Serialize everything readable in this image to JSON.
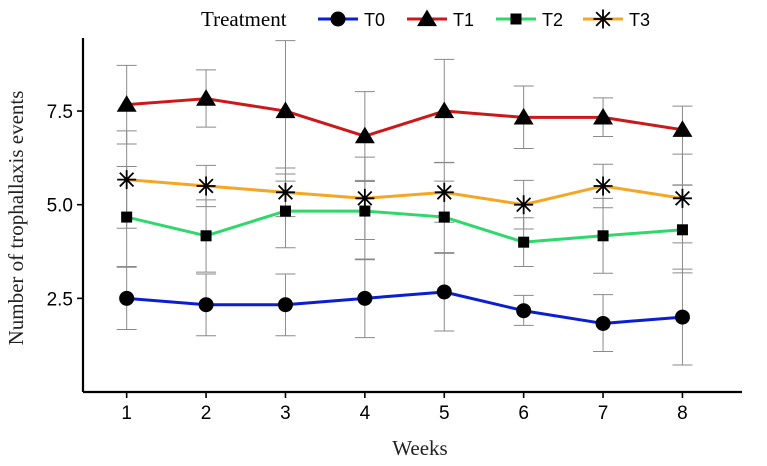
{
  "chart_data": {
    "type": "line",
    "title": "",
    "xlabel": "Weeks",
    "ylabel": "Number of trophallaxis events",
    "x": [
      1,
      2,
      3,
      4,
      5,
      6,
      7,
      8
    ],
    "x_ticks": [
      "1",
      "2",
      "3",
      "4",
      "5",
      "6",
      "7",
      "8"
    ],
    "y_ticks": [
      "2.5",
      "5.0",
      "7.5"
    ],
    "y_tick_values": [
      2.5,
      5.0,
      7.5
    ],
    "xlim": [
      0.45,
      8.75
    ],
    "ylim": [
      0.0,
      9.45
    ],
    "legend_title": "Treatment",
    "legend_position": "top",
    "grid": false,
    "series": [
      {
        "name": "T0",
        "color": "#0a1fd0",
        "marker": "circle",
        "values": [
          2.5,
          2.33,
          2.33,
          2.5,
          2.67,
          2.17,
          1.83,
          2.0
        ],
        "err_lower": [
          1.67,
          1.5,
          1.5,
          1.45,
          1.63,
          1.78,
          1.08,
          0.72
        ],
        "err_upper": [
          3.35,
          3.15,
          3.15,
          3.55,
          3.7,
          2.58,
          2.6,
          3.28
        ]
      },
      {
        "name": "T1",
        "color": "#cc1818",
        "marker": "triangle",
        "values": [
          7.67,
          7.83,
          7.5,
          6.83,
          7.5,
          7.33,
          7.33,
          7.0
        ],
        "err_lower": [
          6.62,
          7.07,
          5.63,
          5.65,
          6.12,
          6.5,
          6.82,
          5.53
        ],
        "err_upper": [
          8.72,
          8.6,
          9.38,
          8.02,
          8.88,
          8.17,
          7.85,
          7.63
        ]
      },
      {
        "name": "T2",
        "color": "#2ed86a",
        "marker": "square",
        "values": [
          4.67,
          4.17,
          4.83,
          4.83,
          4.67,
          4.0,
          4.17,
          4.33
        ],
        "err_lower": [
          3.33,
          3.2,
          3.85,
          3.53,
          3.72,
          3.35,
          3.17,
          3.18
        ],
        "err_upper": [
          6.02,
          5.13,
          5.82,
          5.62,
          5.63,
          4.65,
          5.17,
          5.52
        ]
      },
      {
        "name": "T3",
        "color": "#f5a623",
        "marker": "asterisk",
        "values": [
          5.67,
          5.5,
          5.33,
          5.17,
          5.33,
          5.0,
          5.5,
          5.17
        ],
        "err_lower": [
          4.37,
          4.95,
          4.68,
          4.07,
          4.53,
          4.35,
          4.92,
          3.98
        ],
        "err_upper": [
          6.97,
          6.05,
          5.98,
          6.27,
          6.13,
          5.65,
          6.08,
          6.35
        ]
      }
    ]
  }
}
